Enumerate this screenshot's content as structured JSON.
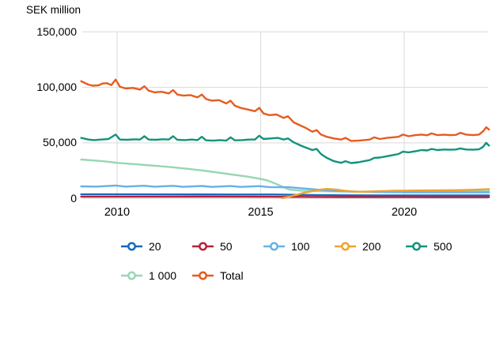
{
  "chart_data": {
    "type": "line",
    "title": "SEK million",
    "xlabel": "",
    "ylabel": "SEK million",
    "grid_color": "#d9d9d9",
    "text_color": "#000000",
    "x_axis": {
      "range": [
        2008.75,
        2023.0
      ],
      "ticks": [
        {
          "label": "2010",
          "year": 2010
        },
        {
          "label": "2015",
          "year": 2015
        },
        {
          "label": "2020",
          "year": 2020
        }
      ]
    },
    "y_axis": {
      "range": [
        0,
        150000
      ],
      "ticks": [
        {
          "label": "150,000",
          "value": 150000
        },
        {
          "label": "100,000",
          "value": 100000
        },
        {
          "label": "50,000",
          "value": 50000
        },
        {
          "label": "0",
          "value": 0
        }
      ]
    },
    "legend_rows": [
      [
        "20",
        "50",
        "100",
        "200",
        "500"
      ],
      [
        "1 000",
        "Total"
      ]
    ],
    "series": [
      {
        "name": "20",
        "color": "#1668BE",
        "points": [
          [
            2008.75,
            3600
          ],
          [
            2010,
            3600
          ],
          [
            2012,
            3550
          ],
          [
            2014,
            3500
          ],
          [
            2015.5,
            3450
          ],
          [
            2016,
            3300
          ],
          [
            2016.5,
            3100
          ],
          [
            2017,
            2950
          ],
          [
            2018,
            2800
          ],
          [
            2019,
            2700
          ],
          [
            2020,
            2650
          ],
          [
            2021,
            2600
          ],
          [
            2022,
            2600
          ],
          [
            2022.95,
            2600
          ]
        ]
      },
      {
        "name": "50",
        "color": "#B5223C",
        "points": [
          [
            2008.75,
            1500
          ],
          [
            2010,
            1500
          ],
          [
            2012,
            1500
          ],
          [
            2014,
            1500
          ],
          [
            2015.5,
            1450
          ],
          [
            2016,
            1350
          ],
          [
            2017,
            1250
          ],
          [
            2018,
            1200
          ],
          [
            2019,
            1150
          ],
          [
            2020,
            1120
          ],
          [
            2021,
            1100
          ],
          [
            2022,
            1100
          ],
          [
            2022.95,
            1100
          ]
        ]
      },
      {
        "name": "100",
        "color": "#66B1E7",
        "points": [
          [
            2008.75,
            10800
          ],
          [
            2009.3,
            10600
          ],
          [
            2009.95,
            11600
          ],
          [
            2010.3,
            10600
          ],
          [
            2010.95,
            11400
          ],
          [
            2011.3,
            10500
          ],
          [
            2011.95,
            11300
          ],
          [
            2012.3,
            10400
          ],
          [
            2012.95,
            11200
          ],
          [
            2013.3,
            10300
          ],
          [
            2013.95,
            11100
          ],
          [
            2014.3,
            10300
          ],
          [
            2014.95,
            11000
          ],
          [
            2015.3,
            10200
          ],
          [
            2015.7,
            10000
          ],
          [
            2015.95,
            10200
          ],
          [
            2016.3,
            9300
          ],
          [
            2016.7,
            8500
          ],
          [
            2017,
            7800
          ],
          [
            2017.4,
            7000
          ],
          [
            2017.8,
            6500
          ],
          [
            2018.2,
            6100
          ],
          [
            2018.6,
            5900
          ],
          [
            2019,
            5700
          ],
          [
            2019.5,
            5600
          ],
          [
            2020,
            5500
          ],
          [
            2021,
            5400
          ],
          [
            2022,
            5400
          ],
          [
            2022.95,
            5400
          ]
        ]
      },
      {
        "name": "200",
        "color": "#F0A22E",
        "points": [
          [
            2015.75,
            200
          ],
          [
            2015.95,
            1200
          ],
          [
            2016.2,
            3000
          ],
          [
            2016.5,
            5000
          ],
          [
            2016.8,
            6500
          ],
          [
            2017.05,
            7800
          ],
          [
            2017.3,
            8500
          ],
          [
            2017.6,
            8000
          ],
          [
            2017.9,
            7000
          ],
          [
            2018.2,
            6200
          ],
          [
            2018.5,
            6000
          ],
          [
            2018.8,
            6200
          ],
          [
            2019.2,
            6500
          ],
          [
            2019.6,
            6800
          ],
          [
            2020,
            7000
          ],
          [
            2020.5,
            7100
          ],
          [
            2021,
            7200
          ],
          [
            2021.5,
            7300
          ],
          [
            2022,
            7500
          ],
          [
            2022.5,
            7800
          ],
          [
            2022.95,
            8400
          ]
        ]
      },
      {
        "name": "500",
        "color": "#12937C",
        "points": [
          [
            2008.75,
            54500
          ],
          [
            2009.0,
            53000
          ],
          [
            2009.2,
            52500
          ],
          [
            2009.45,
            53000
          ],
          [
            2009.7,
            53500
          ],
          [
            2009.95,
            57500
          ],
          [
            2010.1,
            53000
          ],
          [
            2010.35,
            52800
          ],
          [
            2010.6,
            53200
          ],
          [
            2010.8,
            53000
          ],
          [
            2010.95,
            56000
          ],
          [
            2011.1,
            53000
          ],
          [
            2011.35,
            52800
          ],
          [
            2011.6,
            53300
          ],
          [
            2011.8,
            53000
          ],
          [
            2011.95,
            56000
          ],
          [
            2012.1,
            52800
          ],
          [
            2012.35,
            52500
          ],
          [
            2012.6,
            53000
          ],
          [
            2012.8,
            52500
          ],
          [
            2012.95,
            55500
          ],
          [
            2013.1,
            52300
          ],
          [
            2013.35,
            52000
          ],
          [
            2013.6,
            52500
          ],
          [
            2013.8,
            52000
          ],
          [
            2013.95,
            55000
          ],
          [
            2014.1,
            52300
          ],
          [
            2014.35,
            52500
          ],
          [
            2014.6,
            53000
          ],
          [
            2014.8,
            53000
          ],
          [
            2014.95,
            56400
          ],
          [
            2015.1,
            53500
          ],
          [
            2015.35,
            54000
          ],
          [
            2015.6,
            54500
          ],
          [
            2015.8,
            53000
          ],
          [
            2015.95,
            54000
          ],
          [
            2016.15,
            50500
          ],
          [
            2016.4,
            47500
          ],
          [
            2016.6,
            45500
          ],
          [
            2016.8,
            43500
          ],
          [
            2016.95,
            44500
          ],
          [
            2017.1,
            40000
          ],
          [
            2017.3,
            36500
          ],
          [
            2017.55,
            33500
          ],
          [
            2017.8,
            32000
          ],
          [
            2017.95,
            33500
          ],
          [
            2018.15,
            31800
          ],
          [
            2018.4,
            32500
          ],
          [
            2018.6,
            33500
          ],
          [
            2018.8,
            34500
          ],
          [
            2018.95,
            36500
          ],
          [
            2019.15,
            36800
          ],
          [
            2019.4,
            38000
          ],
          [
            2019.6,
            39000
          ],
          [
            2019.8,
            40000
          ],
          [
            2019.95,
            42000
          ],
          [
            2020.15,
            41500
          ],
          [
            2020.4,
            42500
          ],
          [
            2020.6,
            43500
          ],
          [
            2020.8,
            43200
          ],
          [
            2020.95,
            44500
          ],
          [
            2021.15,
            43500
          ],
          [
            2021.4,
            44000
          ],
          [
            2021.6,
            43800
          ],
          [
            2021.8,
            44000
          ],
          [
            2021.95,
            45000
          ],
          [
            2022.15,
            44000
          ],
          [
            2022.4,
            43800
          ],
          [
            2022.6,
            44200
          ],
          [
            2022.75,
            46500
          ],
          [
            2022.85,
            50000
          ],
          [
            2022.95,
            47500
          ]
        ]
      },
      {
        "name": "1 000",
        "color": "#97D6B3",
        "points": [
          [
            2008.75,
            35000
          ],
          [
            2009.5,
            33500
          ],
          [
            2010,
            32000
          ],
          [
            2010.5,
            31000
          ],
          [
            2011,
            30000
          ],
          [
            2011.5,
            29000
          ],
          [
            2012,
            27800
          ],
          [
            2012.5,
            26500
          ],
          [
            2013,
            25000
          ],
          [
            2013.5,
            23300
          ],
          [
            2014,
            21500
          ],
          [
            2014.5,
            19800
          ],
          [
            2015,
            17500
          ],
          [
            2015.25,
            16000
          ],
          [
            2015.5,
            13500
          ],
          [
            2015.75,
            10500
          ],
          [
            2016,
            8000
          ],
          [
            2016.4,
            7000
          ],
          [
            2017,
            6500
          ],
          [
            2018,
            6100
          ],
          [
            2019,
            5900
          ],
          [
            2020,
            5900
          ],
          [
            2021,
            6100
          ],
          [
            2022,
            6400
          ],
          [
            2022.95,
            6600
          ]
        ]
      },
      {
        "name": "Total",
        "color": "#E55C20",
        "points": [
          [
            2008.75,
            105500
          ],
          [
            2009.0,
            102500
          ],
          [
            2009.15,
            101500
          ],
          [
            2009.35,
            101800
          ],
          [
            2009.5,
            103500
          ],
          [
            2009.65,
            103800
          ],
          [
            2009.8,
            102000
          ],
          [
            2009.95,
            107000
          ],
          [
            2010.1,
            100500
          ],
          [
            2010.3,
            99000
          ],
          [
            2010.55,
            99500
          ],
          [
            2010.8,
            98000
          ],
          [
            2010.95,
            101000
          ],
          [
            2011.1,
            97000
          ],
          [
            2011.3,
            95500
          ],
          [
            2011.55,
            96000
          ],
          [
            2011.8,
            94500
          ],
          [
            2011.95,
            97500
          ],
          [
            2012.1,
            93500
          ],
          [
            2012.3,
            92500
          ],
          [
            2012.55,
            93000
          ],
          [
            2012.8,
            91000
          ],
          [
            2012.95,
            93500
          ],
          [
            2013.1,
            89500
          ],
          [
            2013.3,
            88000
          ],
          [
            2013.55,
            88500
          ],
          [
            2013.8,
            85500
          ],
          [
            2013.95,
            88000
          ],
          [
            2014.1,
            83500
          ],
          [
            2014.3,
            81500
          ],
          [
            2014.55,
            80000
          ],
          [
            2014.8,
            78500
          ],
          [
            2014.95,
            81500
          ],
          [
            2015.1,
            76500
          ],
          [
            2015.3,
            75000
          ],
          [
            2015.55,
            75500
          ],
          [
            2015.8,
            72500
          ],
          [
            2015.95,
            74000
          ],
          [
            2016.15,
            68500
          ],
          [
            2016.4,
            65500
          ],
          [
            2016.6,
            63000
          ],
          [
            2016.8,
            60000
          ],
          [
            2016.95,
            61500
          ],
          [
            2017.1,
            57500
          ],
          [
            2017.3,
            55500
          ],
          [
            2017.55,
            54000
          ],
          [
            2017.8,
            53000
          ],
          [
            2017.95,
            54500
          ],
          [
            2018.15,
            51800
          ],
          [
            2018.4,
            52000
          ],
          [
            2018.6,
            52500
          ],
          [
            2018.8,
            53000
          ],
          [
            2018.95,
            55000
          ],
          [
            2019.15,
            53500
          ],
          [
            2019.4,
            54500
          ],
          [
            2019.6,
            55000
          ],
          [
            2019.8,
            55500
          ],
          [
            2019.95,
            57500
          ],
          [
            2020.15,
            56000
          ],
          [
            2020.4,
            57000
          ],
          [
            2020.6,
            57500
          ],
          [
            2020.8,
            56800
          ],
          [
            2020.95,
            58500
          ],
          [
            2021.15,
            57000
          ],
          [
            2021.4,
            57300
          ],
          [
            2021.6,
            57000
          ],
          [
            2021.8,
            57200
          ],
          [
            2021.95,
            59000
          ],
          [
            2022.15,
            57500
          ],
          [
            2022.4,
            57000
          ],
          [
            2022.6,
            57500
          ],
          [
            2022.75,
            60500
          ],
          [
            2022.85,
            64000
          ],
          [
            2022.95,
            62000
          ]
        ]
      }
    ]
  }
}
